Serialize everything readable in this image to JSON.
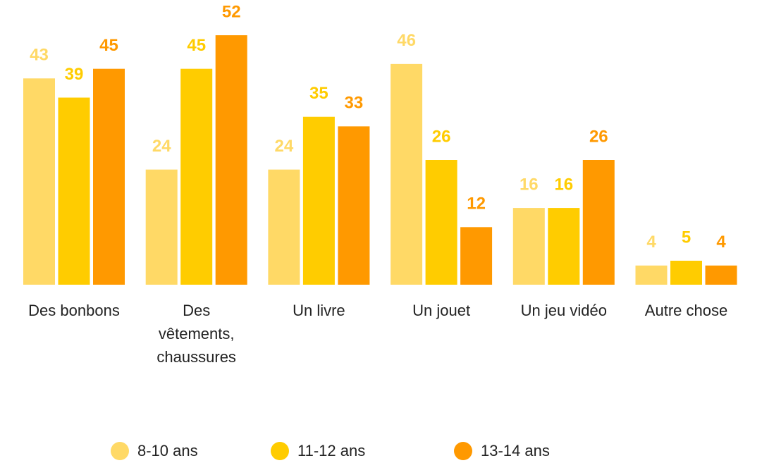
{
  "chart_data": {
    "type": "bar",
    "categories": [
      "Des bonbons",
      "Des vêtements, chaussures",
      "Un livre",
      "Un jouet",
      "Un jeu vidéo",
      "Autre chose"
    ],
    "series": [
      {
        "name": "8-10 ans",
        "color": "#ffd966",
        "values": [
          43,
          24,
          24,
          46,
          16,
          4
        ]
      },
      {
        "name": "11-12 ans",
        "color": "#ffcc00",
        "values": [
          39,
          45,
          35,
          26,
          16,
          5
        ]
      },
      {
        "name": "13-14 ans",
        "color": "#ff9900",
        "values": [
          45,
          52,
          33,
          12,
          26,
          4
        ]
      }
    ],
    "legend": "bottom"
  }
}
